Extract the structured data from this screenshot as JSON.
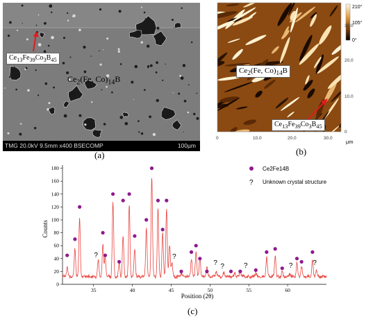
{
  "panel_a": {
    "caption": "(a)",
    "sem_info": "TMG 20.0kV 9.5mm x400 BSECOMP",
    "scale_bar": "100µm",
    "label_minor": "Ce13Fe39Co3B45",
    "label_major": "Ce2(Fe, Co)14B",
    "colors": {
      "matrix": "#7c7c7c",
      "grain": "#1a1a1a",
      "arrow": "#e41a1c"
    }
  },
  "panel_b": {
    "caption": "(b)",
    "label_major": "Ce2(Fe, Co)14B",
    "label_minor": "Ce13Fe39Co3B45",
    "x_ticks": [
      "0",
      "10.0",
      "20.0",
      "30.0"
    ],
    "x_unit": "µm",
    "y_ticks": [
      "0",
      "10.0",
      "20.0",
      "30.0"
    ],
    "colorbar_ticks": [
      "210°",
      "105°",
      "0°"
    ],
    "colors": {
      "dark": "#2a1200",
      "mid": "#8a4a12",
      "light": "#fff4d6"
    }
  },
  "chart_data": {
    "type": "line",
    "caption": "(c)",
    "xlabel": "Position (2θ)",
    "ylabel": "Counts",
    "xlim": [
      31,
      65
    ],
    "ylim": [
      0,
      185
    ],
    "x_ticks": [
      35,
      40,
      45,
      50,
      55,
      60
    ],
    "y_ticks": [
      0,
      20,
      40,
      60,
      80,
      100,
      120,
      140,
      160,
      180
    ],
    "legend": {
      "placement": "top-right",
      "entries": [
        {
          "marker": "●",
          "label": "Ce2Fe14B"
        },
        {
          "marker": "?",
          "label": "Unknown crystal structure"
        }
      ]
    },
    "colors": {
      "line": "#e8433e",
      "marker": "#8e1a8e"
    },
    "baseline": 12,
    "peaks": [
      {
        "x": 31.6,
        "y": 28
      },
      {
        "x": 32.6,
        "y": 55
      },
      {
        "x": 33.2,
        "y": 103
      },
      {
        "x": 35.6,
        "y": 38
      },
      {
        "x": 36.2,
        "y": 62
      },
      {
        "x": 36.5,
        "y": 42
      },
      {
        "x": 37.5,
        "y": 128
      },
      {
        "x": 38.3,
        "y": 32
      },
      {
        "x": 38.8,
        "y": 75
      },
      {
        "x": 39.6,
        "y": 123
      },
      {
        "x": 40.3,
        "y": 55
      },
      {
        "x": 41.8,
        "y": 88
      },
      {
        "x": 42.5,
        "y": 167
      },
      {
        "x": 43.3,
        "y": 118
      },
      {
        "x": 43.9,
        "y": 80
      },
      {
        "x": 44.4,
        "y": 118
      },
      {
        "x": 44.8,
        "y": 62
      },
      {
        "x": 45.1,
        "y": 34
      },
      {
        "x": 46.3,
        "y": 18
      },
      {
        "x": 47.6,
        "y": 40
      },
      {
        "x": 48.2,
        "y": 50
      },
      {
        "x": 48.7,
        "y": 42
      },
      {
        "x": 49.6,
        "y": 28
      },
      {
        "x": 50.8,
        "y": 20
      },
      {
        "x": 51.8,
        "y": 18
      },
      {
        "x": 53.2,
        "y": 18
      },
      {
        "x": 53.9,
        "y": 22
      },
      {
        "x": 55.9,
        "y": 18
      },
      {
        "x": 57.3,
        "y": 42
      },
      {
        "x": 58.4,
        "y": 45
      },
      {
        "x": 59.3,
        "y": 20
      },
      {
        "x": 60.3,
        "y": 17
      },
      {
        "x": 61.2,
        "y": 33
      },
      {
        "x": 61.8,
        "y": 28
      },
      {
        "x": 63.2,
        "y": 36
      },
      {
        "x": 63.7,
        "y": 22
      }
    ],
    "circle_markers": [
      {
        "x": 31.6,
        "y": 45
      },
      {
        "x": 32.6,
        "y": 70
      },
      {
        "x": 33.2,
        "y": 120
      },
      {
        "x": 36.2,
        "y": 80
      },
      {
        "x": 36.5,
        "y": 45
      },
      {
        "x": 37.5,
        "y": 140
      },
      {
        "x": 38.3,
        "y": 35
      },
      {
        "x": 38.8,
        "y": 130
      },
      {
        "x": 39.6,
        "y": 140
      },
      {
        "x": 40.3,
        "y": 75
      },
      {
        "x": 41.8,
        "y": 100
      },
      {
        "x": 42.5,
        "y": 180
      },
      {
        "x": 43.3,
        "y": 130
      },
      {
        "x": 43.9,
        "y": 85
      },
      {
        "x": 44.4,
        "y": 130
      },
      {
        "x": 46.3,
        "y": 20
      },
      {
        "x": 47.6,
        "y": 50
      },
      {
        "x": 48.2,
        "y": 60
      },
      {
        "x": 48.7,
        "y": 40
      },
      {
        "x": 49.6,
        "y": 20
      },
      {
        "x": 52.7,
        "y": 20
      },
      {
        "x": 53.9,
        "y": 20
      },
      {
        "x": 55.9,
        "y": 22
      },
      {
        "x": 57.3,
        "y": 50
      },
      {
        "x": 58.4,
        "y": 55
      },
      {
        "x": 59.3,
        "y": 25
      },
      {
        "x": 61.2,
        "y": 40
      },
      {
        "x": 61.8,
        "y": 35
      },
      {
        "x": 63.2,
        "y": 50
      }
    ],
    "question_markers": [
      {
        "x": 35.3,
        "y": 42
      },
      {
        "x": 45.4,
        "y": 40
      },
      {
        "x": 50.7,
        "y": 30
      },
      {
        "x": 51.6,
        "y": 25
      },
      {
        "x": 54.6,
        "y": 26
      },
      {
        "x": 60.4,
        "y": 26
      },
      {
        "x": 63.5,
        "y": 30
      }
    ]
  }
}
